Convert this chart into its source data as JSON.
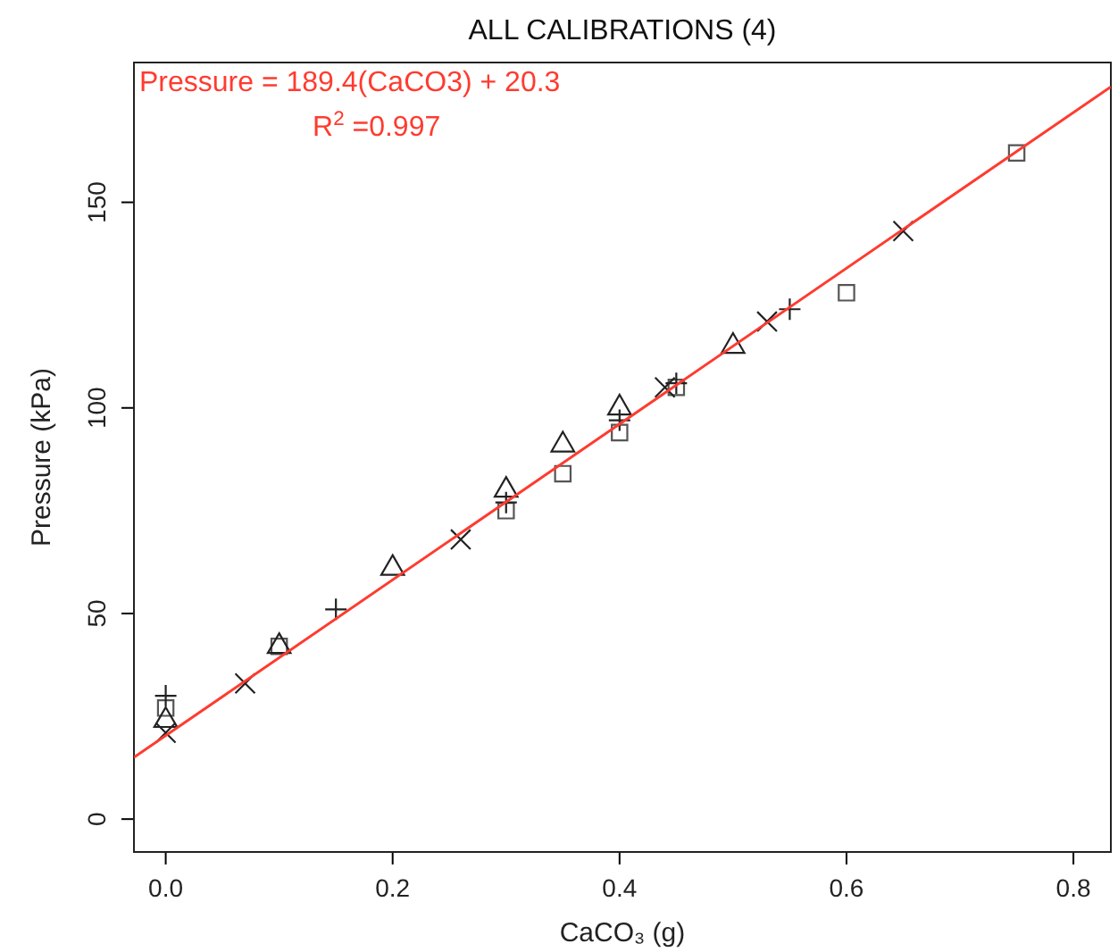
{
  "chart_data": {
    "type": "scatter",
    "title": "ALL CALIBRATIONS (4)",
    "xlabel": "CaCO₃ (g)",
    "ylabel": "Pressure (kPa)",
    "annotations": [
      "Pressure = 189.4(CaCO3) + 20.3",
      "R$^{2}$ =0.997"
    ],
    "xlim": [
      -0.028,
      0.833
    ],
    "ylim": [
      -8,
      184
    ],
    "xticks": [
      {
        "value": 0,
        "label": "0.0"
      },
      0.2,
      0.4,
      0.6,
      0.8
    ],
    "yticks": [
      0,
      50,
      100,
      150
    ],
    "grid": false,
    "series": [
      {
        "color": "#555555",
        "marker": "square",
        "x": [
          0,
          0.1,
          0.3,
          0.35,
          0.4,
          0.45,
          0.6,
          0.75
        ],
        "values": [
          27,
          42,
          75,
          84,
          94,
          105,
          128,
          162
        ]
      },
      {
        "color": "#222222",
        "marker": "triangle",
        "x": [
          0,
          0.1,
          0.2,
          0.3,
          0.35,
          0.4,
          0.5
        ],
        "values": [
          24,
          42,
          61,
          80,
          91,
          100,
          115
        ]
      },
      {
        "color": "#222222",
        "marker": "cross",
        "x": [
          0,
          0.15,
          0.3,
          0.4,
          0.45,
          0.55
        ],
        "values": [
          30,
          51,
          77,
          97,
          106,
          124
        ]
      },
      {
        "color": "#222222",
        "marker": "x",
        "x": [
          0,
          0.07,
          0.26,
          0.44,
          0.53,
          0.65
        ],
        "values": [
          21,
          33,
          68,
          105,
          121,
          143
        ]
      },
      {
        "type": "line",
        "color": "#ff3b2f",
        "marker": "none",
        "line_style": "solid",
        "x": [
          -0.028,
          0.833
        ],
        "values": [
          15.0,
          178.1
        ]
      }
    ]
  }
}
